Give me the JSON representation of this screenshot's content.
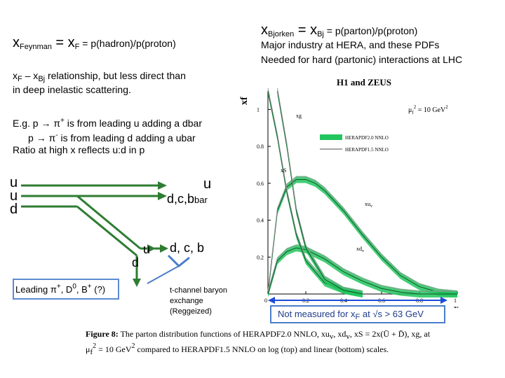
{
  "left": {
    "xf_heading": {
      "x": "x",
      "sub": "Feynman",
      "eq": " = x",
      "sub2": "F",
      "rest": " = p(hadron)/p(proton)"
    },
    "relation_line1": {
      "a": "x",
      "a_sub": "F",
      "b": " – x",
      "b_sub": "Bj",
      "c": " relationship, but less direct than"
    },
    "relation_line2": "in deep inelastic scattering.",
    "eg_line1": {
      "a": "E.g. p ",
      "b": " π",
      "b_sup": "+",
      "c": " is from leading u adding a dbar"
    },
    "eg_line2": {
      "a": "p ",
      "b": " π",
      "b_sup": "-",
      "c": " is from leading d adding a ubar"
    },
    "eg_line3": "Ratio at high x reflects u:d in p"
  },
  "diagram": {
    "left_quarks": [
      "u",
      "u",
      "d"
    ],
    "top_out_quark": "u",
    "top_out_label": "d,c,b",
    "top_out_bar": "bar",
    "mid_quark_d": "d",
    "mid_quark_u": "u",
    "mid_label": "d, c, b",
    "leading_box": {
      "a": "Leading π",
      "a_sup": "+",
      "b": ", D",
      "b_sup": "0",
      "c": ", B",
      "c_sup": "+",
      "d": " (?)"
    },
    "tchannel": [
      "t-channel baryon",
      "exchange",
      "(Reggeized)"
    ]
  },
  "right": {
    "xbj_heading": {
      "x": "x",
      "sub": "Bjorken",
      "eq": " = x",
      "sub2": "Bj",
      "rest": " = p(parton)/p(proton)"
    },
    "industry_line": "Major industry at HERA, and these PDFs",
    "needed_line": "Needed for hard (partonic) interactions at LHC",
    "not_measured": {
      "a": "Not measured for x",
      "a_sub": "F",
      "b": " at √s > 63 GeV"
    }
  },
  "chart_data": {
    "type": "line",
    "title": "H1 and ZEUS",
    "ylabel": "xf",
    "xlabel": "x",
    "scale_label": "μ",
    "scale_sub": "f",
    "scale_sup": "2",
    "scale_value": " = 10 GeV",
    "scale_value_sup": "2",
    "legend": [
      "HERAPDF2.0 NNLO",
      "HERAPDF1.5 NNLO"
    ],
    "xlim": [
      0,
      1
    ],
    "ylim": [
      0,
      1.1
    ],
    "xticks": [
      "0",
      "0.2",
      "0.4",
      "0.6",
      "0.8",
      "1"
    ],
    "yticks": [
      "0.2",
      "0.4",
      "0.6",
      "0.8",
      "1"
    ],
    "series_labels": [
      "xg",
      "xS",
      "xu",
      "v",
      "xd",
      "v"
    ],
    "curve_labels": {
      "xg": "xg",
      "xS": "xS",
      "xuv": "xu",
      "xuv_sub": "v",
      "xdv": "xd",
      "xdv_sub": "v"
    },
    "series": [
      {
        "name": "xu_v",
        "x": [
          0.0,
          0.05,
          0.1,
          0.15,
          0.2,
          0.25,
          0.3,
          0.4,
          0.5,
          0.6,
          0.7,
          0.8,
          0.9,
          1.0
        ],
        "values": [
          0.0,
          0.45,
          0.58,
          0.62,
          0.62,
          0.6,
          0.56,
          0.45,
          0.32,
          0.2,
          0.1,
          0.04,
          0.01,
          0.0
        ]
      },
      {
        "name": "xd_v",
        "x": [
          0.0,
          0.05,
          0.1,
          0.15,
          0.2,
          0.3,
          0.4,
          0.5,
          0.6,
          0.7,
          0.8,
          1.0
        ],
        "values": [
          0.0,
          0.18,
          0.23,
          0.25,
          0.24,
          0.19,
          0.12,
          0.07,
          0.03,
          0.01,
          0.0,
          0.0
        ]
      },
      {
        "name": "xS",
        "x": [
          0.0,
          0.05,
          0.1,
          0.15,
          0.2,
          0.3,
          0.4,
          0.5
        ],
        "values": [
          1.1,
          0.85,
          0.55,
          0.32,
          0.18,
          0.06,
          0.02,
          0.0
        ]
      },
      {
        "name": "xg",
        "x": [
          0.05,
          0.1,
          0.15,
          0.2,
          0.3,
          0.4,
          0.5
        ],
        "values": [
          1.1,
          0.8,
          0.45,
          0.25,
          0.08,
          0.02,
          0.0
        ]
      }
    ],
    "caption_line1": {
      "a": "Figure 8:",
      "b": "  The parton distribution functions of HERAPDF2.0 NNLO, xu",
      "b_sub": "v",
      "c": ", xd",
      "c_sub": "v",
      "d": ", xS = 2x(Ū + D̄), xg, at"
    },
    "caption_line2": {
      "a": "μ",
      "a_sub": "f",
      "a_sup": "2",
      "b": " = 10 GeV",
      "b_sup": "2",
      "c": " compared to HERAPDF1.5 NNLO on log (top) and linear (bottom) scales."
    }
  }
}
